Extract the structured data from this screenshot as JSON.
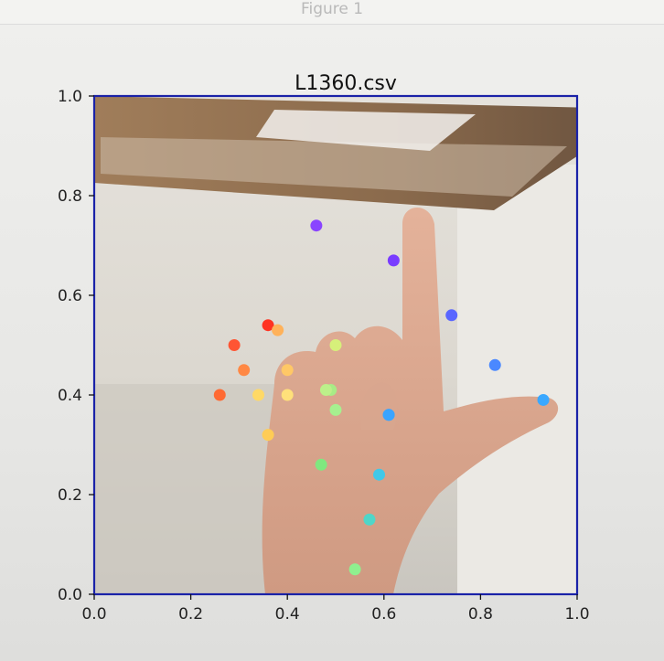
{
  "window": {
    "title": "Figure 1"
  },
  "chart_data": {
    "type": "scatter",
    "title": "L1360.csv",
    "xlabel": "",
    "ylabel": "",
    "xlim": [
      0,
      1
    ],
    "ylim": [
      0,
      1
    ],
    "x_ticks": [
      "0.0",
      "0.2",
      "0.4",
      "0.6",
      "0.8",
      "1.0"
    ],
    "y_ticks": [
      "0.0",
      "0.2",
      "0.4",
      "0.6",
      "0.8",
      "1.0"
    ],
    "grid": false,
    "background": "photo of a hand making an L sign",
    "series": [
      {
        "x": [
          0.54,
          0.57,
          0.47,
          0.36,
          0.34,
          0.31,
          0.29,
          0.26,
          0.5,
          0.4,
          0.4,
          0.36,
          0.38,
          0.5,
          0.49,
          0.48,
          0.59,
          0.61,
          0.61,
          0.74,
          0.83,
          0.93,
          0.46,
          0.62
        ],
        "y": [
          0.05,
          0.15,
          0.26,
          0.32,
          0.4,
          0.45,
          0.5,
          0.4,
          0.5,
          0.4,
          0.45,
          0.54,
          0.53,
          0.37,
          0.41,
          0.41,
          0.24,
          0.36,
          0.36,
          0.56,
          0.46,
          0.39,
          0.74,
          0.67
        ],
        "colors": [
          "#8ff08f",
          "#4fd6c8",
          "#7fe87f",
          "#ffcc55",
          "#ffd966",
          "#ff8844",
          "#ff5533",
          "#ff6a33",
          "#d6f07a",
          "#ffe07a",
          "#ffc866",
          "#ff3322",
          "#ffb25a",
          "#a6f08f",
          "#a8ec86",
          "#bcf08a",
          "#40c8e8",
          "#3aa4ff",
          "#3aa4ff",
          "#5a66ff",
          "#4a88ff",
          "#3aa8ff",
          "#8a44ff",
          "#7a3cff"
        ]
      }
    ]
  }
}
